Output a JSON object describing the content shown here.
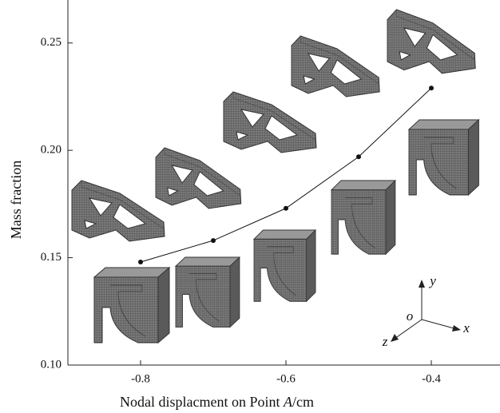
{
  "chart_data": {
    "type": "line",
    "x_label": [
      "Nodal displacment on Point ",
      "A",
      "/cm"
    ],
    "y_label": "Mass fraction",
    "x": [
      -0.8,
      -0.7,
      -0.6,
      -0.5,
      -0.4
    ],
    "series": [
      {
        "color": "#111111",
        "values": [
          0.148,
          0.158,
          0.173,
          0.197,
          0.229
        ]
      }
    ],
    "xlim": [
      -0.9,
      -0.3
    ],
    "ylim": [
      0.1,
      0.27
    ],
    "xticks": [
      -0.8,
      -0.6,
      -0.4
    ],
    "yticks": [
      {
        "value": 0.1,
        "label": "0.10"
      },
      0.15,
      {
        "value": 0.2,
        "label": "0.20"
      },
      0.25
    ],
    "annotations": [
      "y",
      "o",
      "x",
      "z"
    ]
  }
}
